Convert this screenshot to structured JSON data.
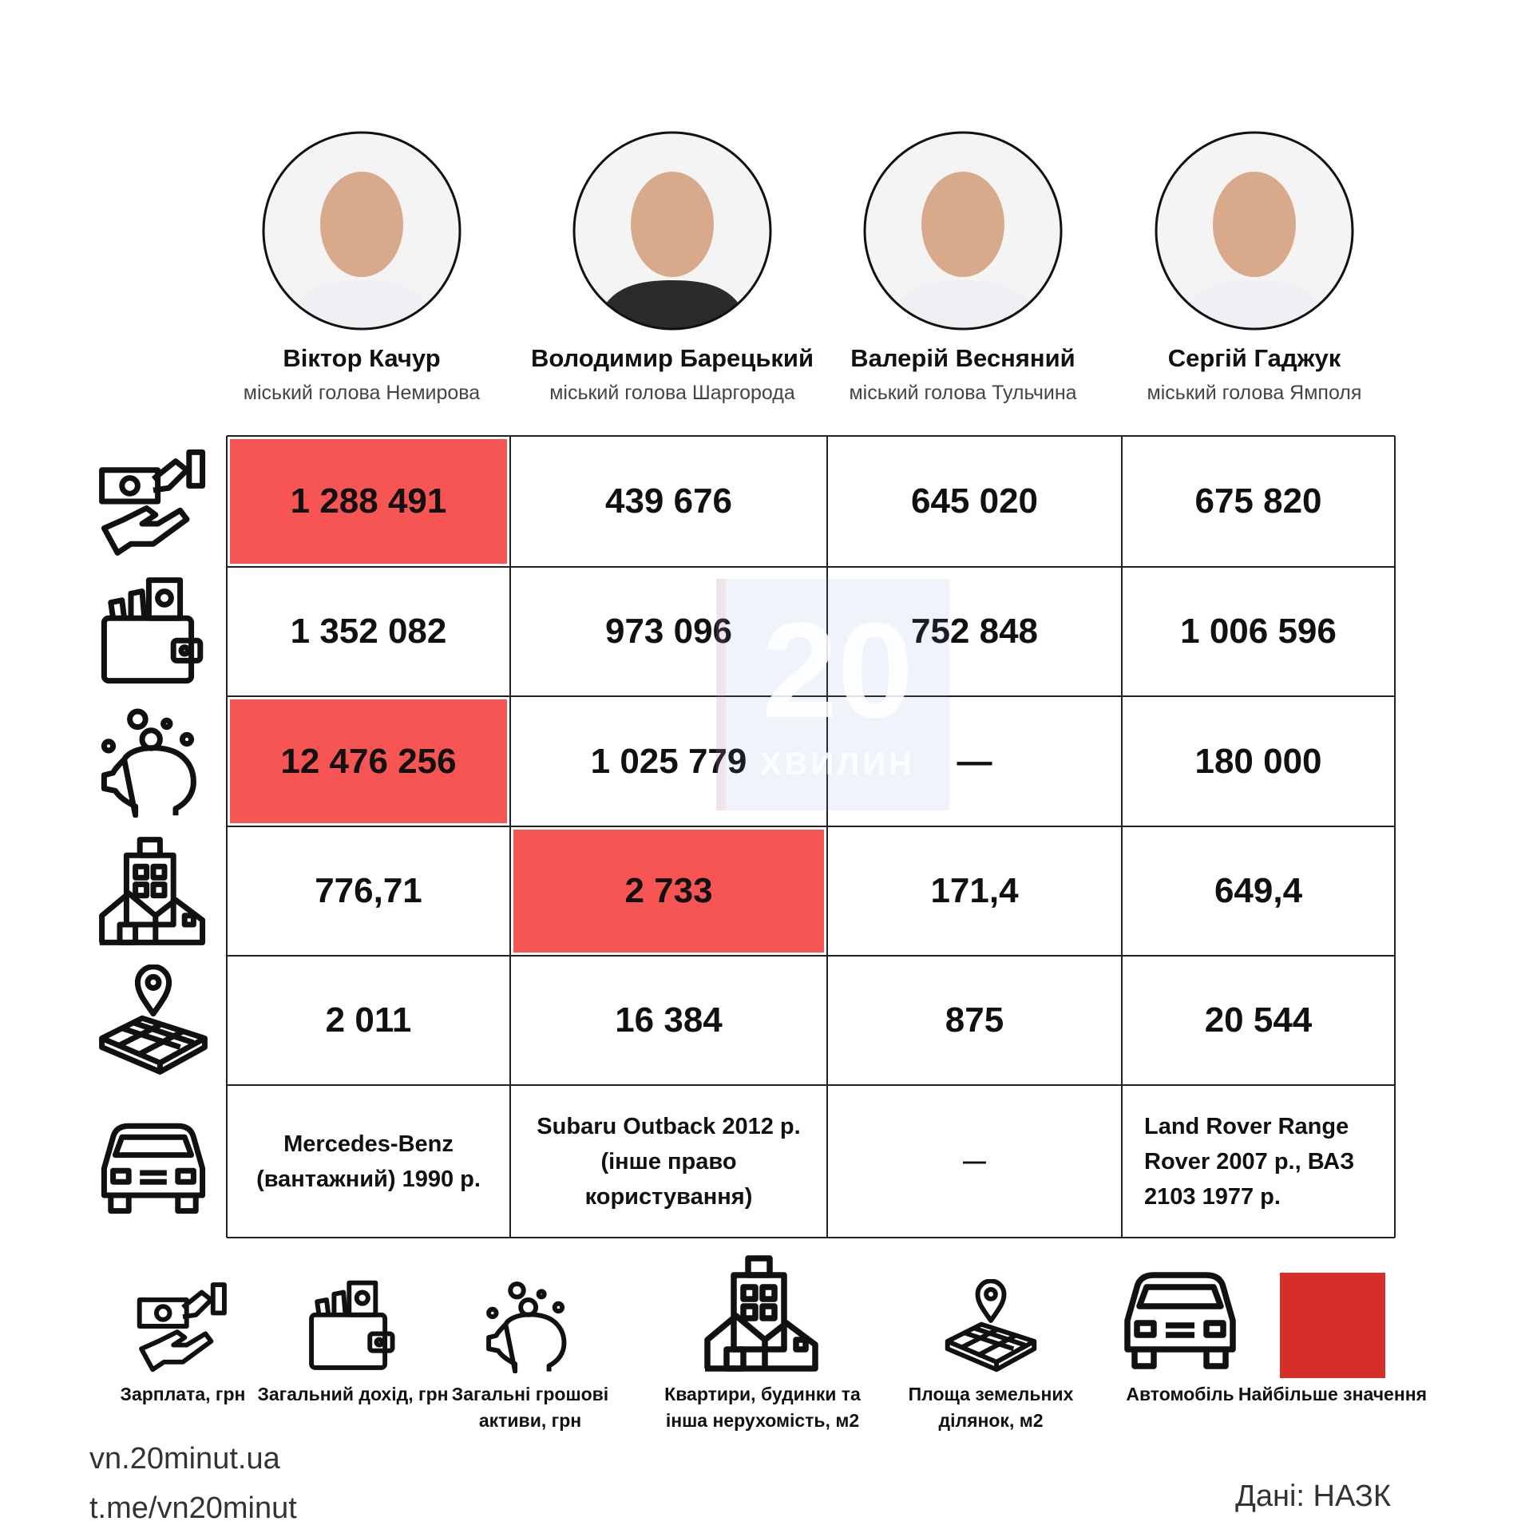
{
  "people": [
    {
      "name": "Віктор Качур",
      "role": "міський голова Немирова"
    },
    {
      "name": "Володимир Барецький",
      "role": "міський голова Шаргорода"
    },
    {
      "name": "Валерій Весняний",
      "role": "міський голова Тульчина"
    },
    {
      "name": "Сергій Гаджук",
      "role": "міський голова Ямполя"
    }
  ],
  "table": {
    "highlight_color": "#f75454",
    "rows": [
      {
        "icon": "salary",
        "cells": [
          "1 288 491",
          "439 676",
          "645 020",
          "675 820"
        ],
        "highlight": [
          0
        ]
      },
      {
        "icon": "wallet",
        "cells": [
          "1 352 082",
          "973 096",
          "752 848",
          "1 006 596"
        ],
        "highlight": []
      },
      {
        "icon": "piggy",
        "cells": [
          "12 476 256",
          "1 025 779",
          "—",
          "180 000"
        ],
        "highlight": [
          0
        ]
      },
      {
        "icon": "buildings",
        "cells": [
          "776,71",
          "2 733",
          "171,4",
          "649,4"
        ],
        "highlight": [
          1
        ]
      },
      {
        "icon": "land",
        "cells": [
          "2 011",
          "16 384",
          "875",
          "20 544"
        ],
        "highlight": []
      },
      {
        "icon": "car",
        "cells": [
          "Mercedes-Benz (вантажний) 1990 р.",
          "Subaru Outback 2012 р. (інше право користування)",
          "—",
          "Land Rover Range Rover 2007 р., ВАЗ 2103 1977 р."
        ],
        "highlight": []
      }
    ]
  },
  "watermark": {
    "number": "20",
    "text": "ХВИЛИН"
  },
  "legend": [
    {
      "icon": "salary",
      "label": "Зарплата, грн"
    },
    {
      "icon": "wallet",
      "label": "Загальний дохід, грн"
    },
    {
      "icon": "piggy",
      "label": "Загальні грошові активи, грн"
    },
    {
      "icon": "buildings",
      "label": "Квартири, будинки та інша нерухомість, м2"
    },
    {
      "icon": "land",
      "label": "Площа земельних ділянок, м2"
    },
    {
      "icon": "car",
      "label": "Автомобіль"
    },
    {
      "icon": "swatch",
      "label": "Найбільше значення",
      "color": "#d62f2a"
    }
  ],
  "footer": {
    "links": [
      "vn.20minut.ua",
      "t.me/vn20minut"
    ],
    "source": "Дані: НАЗК"
  }
}
